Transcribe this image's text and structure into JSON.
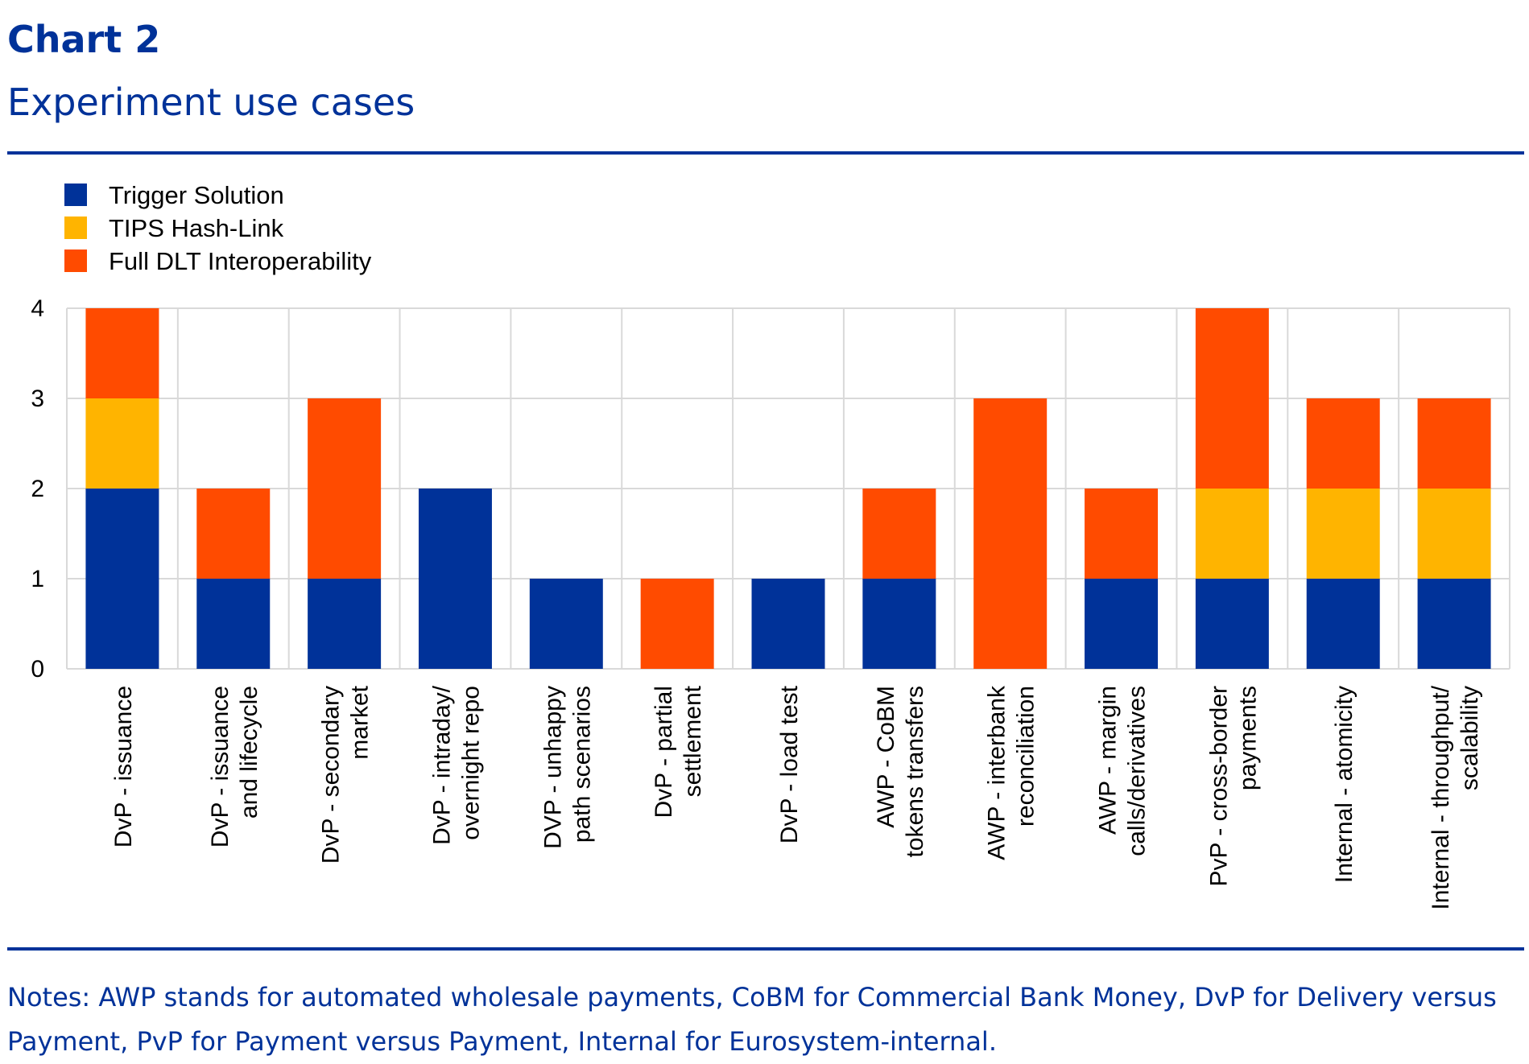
{
  "chart_data": {
    "type": "bar",
    "stacked": true,
    "title": "Chart 2",
    "subtitle": "Experiment use cases",
    "categories": [
      [
        "DvP - issuance"
      ],
      [
        "DvP - issuance",
        "and lifecycle"
      ],
      [
        "DvP - secondary",
        "market"
      ],
      [
        "DvP - intraday/",
        "overnight repo"
      ],
      [
        "DVP - unhappy",
        "path scenarios"
      ],
      [
        "DvP - partial",
        "settlement"
      ],
      [
        "DvP - load test"
      ],
      [
        "AWP - CoBM",
        "tokens transfers"
      ],
      [
        "AWP - interbank",
        "reconciliation"
      ],
      [
        "AWP - margin",
        "calls/derivatives"
      ],
      [
        "PvP - cross-border",
        "payments"
      ],
      [
        "Internal - atomicity"
      ],
      [
        "Internal - throughput/",
        "scalability"
      ]
    ],
    "series": [
      {
        "name": "Trigger Solution",
        "color": "#003299",
        "values": [
          2,
          1,
          1,
          2,
          1,
          0,
          1,
          1,
          0,
          1,
          1,
          1,
          1
        ]
      },
      {
        "name": "TIPS Hash-Link",
        "color": "#FFB400",
        "values": [
          1,
          0,
          0,
          0,
          0,
          0,
          0,
          0,
          0,
          0,
          1,
          1,
          1
        ]
      },
      {
        "name": "Full DLT Interoperability",
        "color": "#FF4B00",
        "values": [
          1,
          1,
          2,
          0,
          0,
          1,
          0,
          1,
          3,
          1,
          2,
          1,
          1
        ]
      }
    ],
    "yticks": [
      "0",
      "1",
      "2",
      "3",
      "4"
    ],
    "ylim": [
      0,
      4
    ],
    "grid": true,
    "legend": "top-left",
    "xlabel": "",
    "ylabel": ""
  },
  "notes": "Notes: AWP stands for automated wholesale payments, CoBM for Commercial Bank Money, DvP for Delivery versus Payment, PvP for Payment versus Payment, Internal for Eurosystem-internal."
}
